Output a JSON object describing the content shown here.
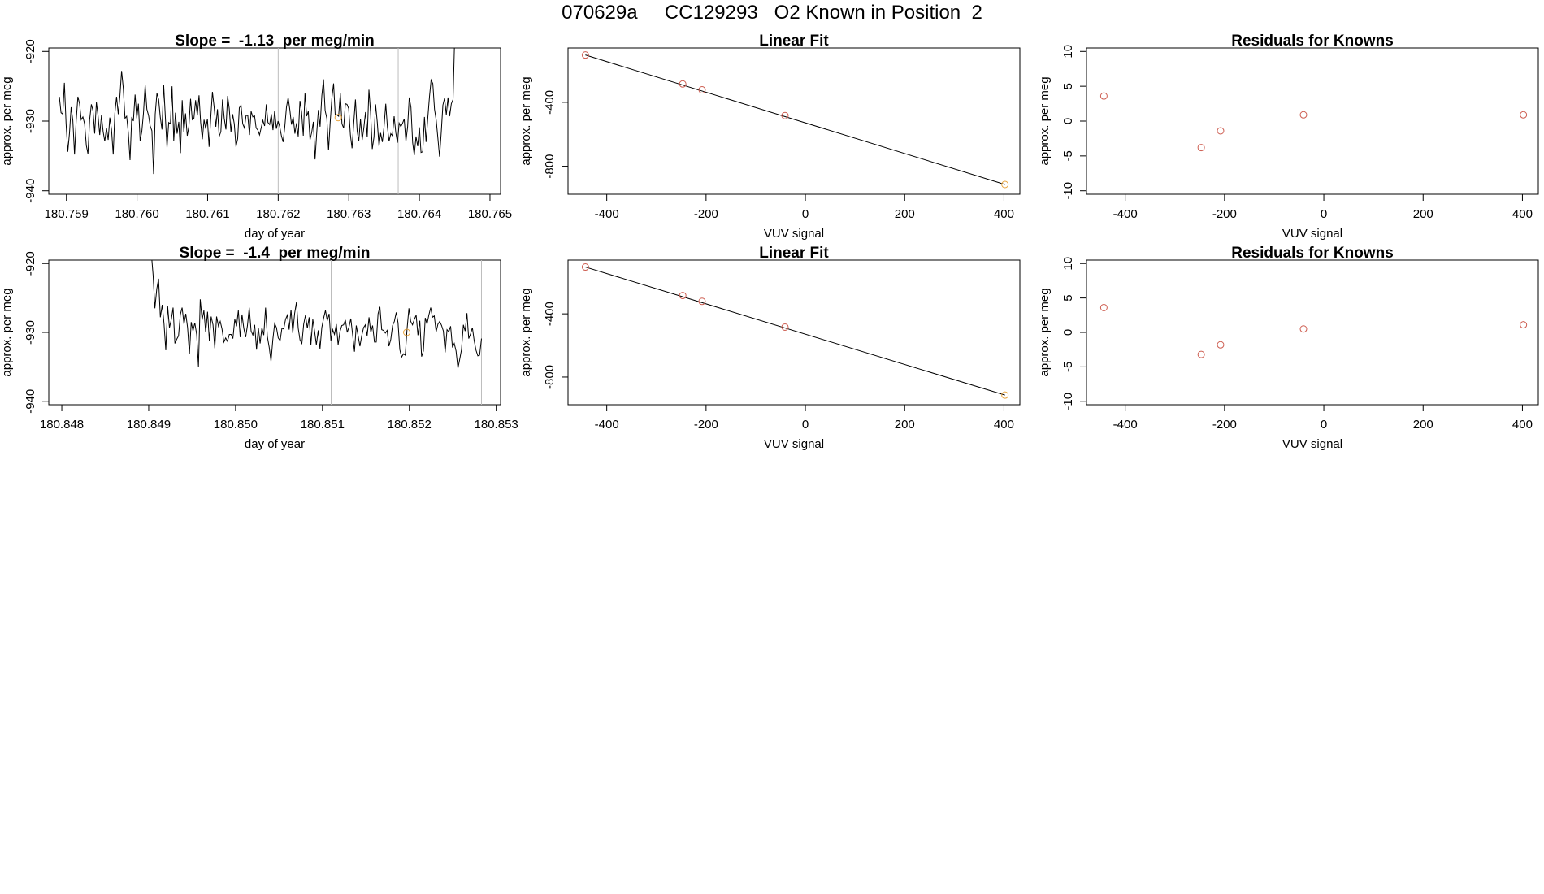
{
  "page": {
    "title": "070629a     CC129293   O2 Known in Position  2"
  },
  "colors": {
    "line": "#000000",
    "frame": "#000000",
    "vline": "#bdbdbd",
    "point_red": "#cd5c4f",
    "point_orange": "#e8a33c"
  },
  "chart_data": [
    {
      "id": "ts1",
      "type": "line",
      "title": "Slope =  -1.13  per meg/min",
      "xlabel": "day of year",
      "ylabel": "approx. per meg",
      "xlim": [
        180.75875,
        180.76515
      ],
      "ylim": [
        -940.5,
        -919.5
      ],
      "xticks": [
        "180.759",
        "180.760",
        "180.761",
        "180.762",
        "180.763",
        "180.764",
        "180.765"
      ],
      "yticks": [
        "-920",
        "-930",
        "-940"
      ],
      "x_start": 180.7589,
      "x_end": 180.7645,
      "y": [
        -926.5,
        -928.8,
        -929.0,
        -924.5,
        -930.4,
        -934.4,
        -931.7,
        -928.0,
        -929.9,
        -934.8,
        -930.0,
        -926.5,
        -927.5,
        -929.8,
        -929.4,
        -930.4,
        -933.5,
        -934.7,
        -929.8,
        -927.6,
        -928.5,
        -931.8,
        -927.3,
        -929.2,
        -932.0,
        -929.2,
        -931.5,
        -932.9,
        -931.0,
        -932.7,
        -929.5,
        -931.2,
        -934.8,
        -928.9,
        -926.5,
        -929.0,
        -926.3,
        -922.8,
        -925.3,
        -929.6,
        -929.3,
        -931.7,
        -935.6,
        -929.4,
        -930.0,
        -926.2,
        -929.6,
        -927.5,
        -932.8,
        -931.5,
        -928.9,
        -924.8,
        -928.3,
        -929.2,
        -930.7,
        -931.4,
        -937.6,
        -929.0,
        -926.0,
        -926.9,
        -929.4,
        -931.2,
        -924.8,
        -929.5,
        -933.8,
        -930.2,
        -930.4,
        -925.0,
        -932.8,
        -928.8,
        -931.8,
        -930.1,
        -934.6,
        -927.0,
        -931.6,
        -928.9,
        -932.1,
        -930.8,
        -926.8,
        -929.8,
        -929.6,
        -927.0,
        -929.2,
        -926.3,
        -930.2,
        -932.6,
        -929.8,
        -931.1,
        -929.7,
        -933.7,
        -929.4,
        -925.8,
        -928.0,
        -930.8,
        -928.3,
        -932.2,
        -931.5,
        -926.9,
        -929.6,
        -931.2,
        -926.4,
        -928.2,
        -931.6,
        -929.0,
        -930.4,
        -933.7,
        -932.5,
        -928.1,
        -927.7,
        -930.4,
        -931.0,
        -929.2,
        -929.2,
        -932.0,
        -928.6,
        -929.4,
        -929.2,
        -931.0,
        -931.3,
        -932.0,
        -930.9,
        -929.9,
        -930.7,
        -927.6,
        -930.2,
        -930.5,
        -929.0,
        -931.3,
        -928.5,
        -931.1,
        -930.0,
        -930.8,
        -932.1,
        -933.0,
        -930.9,
        -928.0,
        -926.6,
        -928.4,
        -930.5,
        -929.4,
        -931.8,
        -930.3,
        -932.2,
        -927.1,
        -928.7,
        -932.1,
        -926.0,
        -929.3,
        -928.6,
        -932.7,
        -931.6,
        -930.1,
        -935.5,
        -931.6,
        -928.4,
        -930.8,
        -926.4,
        -924.0,
        -928.5,
        -929.6,
        -934.2,
        -930.2,
        -926.7,
        -924.6,
        -929.1,
        -929.1,
        -929.3,
        -926.0,
        -930.4,
        -931.0,
        -927.5,
        -927.6,
        -928.2,
        -932.0,
        -933.9,
        -930.3,
        -926.9,
        -931.4,
        -932.9,
        -929.7,
        -932.7,
        -931.0,
        -928.7,
        -932.3,
        -925.5,
        -928.7,
        -934.0,
        -932.3,
        -927.6,
        -930.2,
        -933.6,
        -931.7,
        -933.0,
        -930.8,
        -927.5,
        -930.8,
        -932.9,
        -931.8,
        -932.1,
        -929.3,
        -931.7,
        -933.1,
        -930.3,
        -930.8,
        -930.3,
        -929.7,
        -932.9,
        -930.8,
        -926.6,
        -928.0,
        -933.1,
        -934.9,
        -932.2,
        -933.6,
        -930.9,
        -934.5,
        -934.4,
        -929.4,
        -933.0,
        -929.6,
        -926.5,
        -924.1,
        -924.6,
        -928.3,
        -929.9,
        -932.4,
        -935.1,
        -931.6,
        -927.7,
        -926.7,
        -929.1,
        -926.6,
        -929.3,
        -927.5,
        -926.9,
        -918.0
      ],
      "vlines": [
        180.762,
        180.7637
      ],
      "marker": {
        "x": 180.76285,
        "y": -929.5
      }
    },
    {
      "id": "fit1",
      "type": "scatter",
      "title": "Linear Fit",
      "xlabel": "VUV signal",
      "ylabel": "approx. per meg",
      "xlim": [
        -478,
        432
      ],
      "ylim": [
        -975,
        -60
      ],
      "xticks": [
        "-400",
        "-200",
        "0",
        "200",
        "400"
      ],
      "yticks": [
        "-400",
        "-800"
      ],
      "points": [
        {
          "x": -443,
          "y": -104
        },
        {
          "x": -247,
          "y": -285
        },
        {
          "x": -208,
          "y": -322
        },
        {
          "x": -41,
          "y": -483
        },
        {
          "x": 402,
          "y": -914
        }
      ],
      "fit_line": [
        {
          "x": -443,
          "y": -104
        },
        {
          "x": 402,
          "y": -914
        }
      ],
      "highlight_index": 4
    },
    {
      "id": "res1",
      "type": "scatter",
      "title": "Residuals for Knowns",
      "xlabel": "VUV signal",
      "ylabel": "approx. per meg",
      "xlim": [
        -478,
        432
      ],
      "ylim": [
        -10.5,
        10.5
      ],
      "xticks": [
        "-400",
        "-200",
        "0",
        "200",
        "400"
      ],
      "yticks": [
        "10",
        "5",
        "0",
        "-5",
        "-10"
      ],
      "points": [
        {
          "x": -443,
          "y": 3.6
        },
        {
          "x": -247,
          "y": -3.8
        },
        {
          "x": -208,
          "y": -1.4
        },
        {
          "x": -41,
          "y": 0.9
        },
        {
          "x": 402,
          "y": 0.9
        }
      ]
    },
    {
      "id": "ts2",
      "type": "line",
      "title": "Slope =  -1.4  per meg/min",
      "xlabel": "day of year",
      "ylabel": "approx. per meg",
      "xlim": [
        180.84785,
        180.85305
      ],
      "ylim": [
        -940.5,
        -919.5
      ],
      "xticks": [
        "180.848",
        "180.849",
        "180.850",
        "180.851",
        "180.852",
        "180.853"
      ],
      "yticks": [
        "-920",
        "-930",
        "-940"
      ],
      "x_start": 180.84903,
      "x_end": 180.85283,
      "y": [
        -918.5,
        -921.7,
        -926.5,
        -923.7,
        -922.2,
        -927.8,
        -926.0,
        -928.7,
        -932.6,
        -926.2,
        -929.3,
        -928.2,
        -926.4,
        -931.6,
        -931.0,
        -930.5,
        -927.4,
        -926.4,
        -928.8,
        -927.3,
        -929.3,
        -933.1,
        -928.5,
        -929.8,
        -928.6,
        -930.3,
        -935.0,
        -925.2,
        -928.2,
        -926.8,
        -930.0,
        -927.0,
        -931.2,
        -927.7,
        -928.9,
        -932.3,
        -927.7,
        -929.1,
        -928.4,
        -929.5,
        -931.4,
        -930.8,
        -931.3,
        -930.3,
        -930.3,
        -930.9,
        -928.1,
        -929.1,
        -926.8,
        -930.7,
        -927.4,
        -929.4,
        -930.7,
        -929.0,
        -926.4,
        -929.8,
        -930.4,
        -928.9,
        -932.5,
        -929.3,
        -931.6,
        -929.3,
        -930.4,
        -926.4,
        -930.6,
        -932.2,
        -934.2,
        -931.1,
        -928.7,
        -929.3,
        -930.8,
        -931.2,
        -929.4,
        -929.5,
        -928.1,
        -927.5,
        -929.6,
        -926.7,
        -930.1,
        -927.3,
        -925.6,
        -929.4,
        -931.1,
        -931.6,
        -928.8,
        -927.5,
        -929.4,
        -927.8,
        -931.8,
        -928.1,
        -929.8,
        -931.8,
        -929.7,
        -932.4,
        -929.3,
        -927.9,
        -926.8,
        -928.3,
        -927.3,
        -931.2,
        -929.6,
        -930.3,
        -928.8,
        -931.8,
        -929.9,
        -929.0,
        -928.9,
        -928.2,
        -930.0,
        -929.2,
        -928.0,
        -930.4,
        -932.8,
        -929.0,
        -930.5,
        -932.0,
        -930.5,
        -929.3,
        -928.9,
        -930.5,
        -927.8,
        -930.0,
        -929.0,
        -931.4,
        -931.4,
        -927.3,
        -926.3,
        -929.6,
        -929.7,
        -930.1,
        -929.7,
        -932.0,
        -931.0,
        -929.0,
        -928.4,
        -927.1,
        -928.6,
        -932.5,
        -933.6,
        -933.1,
        -933.3,
        -929.5,
        -926.5,
        -928.4,
        -928.9,
        -928.1,
        -927.5,
        -930.4,
        -928.3,
        -933.5,
        -932.7,
        -927.9,
        -928.8,
        -927.5,
        -926.4,
        -927.8,
        -927.6,
        -929.9,
        -928.8,
        -928.4,
        -929.0,
        -929.8,
        -932.9,
        -929.6,
        -929.9,
        -929.1,
        -932.2,
        -931.6,
        -932.7,
        -935.2,
        -933.9,
        -932.5,
        -928.9,
        -929.8,
        -927.2,
        -930.9,
        -930.2,
        -929.3,
        -931.2,
        -932.6,
        -933.4,
        -933.3,
        -930.9
      ],
      "vlines": [
        180.8511,
        180.85283
      ],
      "marker": {
        "x": 180.85197,
        "y": -930.0
      }
    },
    {
      "id": "fit2",
      "type": "scatter",
      "title": "Linear Fit",
      "xlabel": "VUV signal",
      "ylabel": "approx. per meg",
      "xlim": [
        -478,
        432
      ],
      "ylim": [
        -975,
        -60
      ],
      "xticks": [
        "-400",
        "-200",
        "0",
        "200",
        "400"
      ],
      "yticks": [
        "-400",
        "-800"
      ],
      "points": [
        {
          "x": -443,
          "y": -104
        },
        {
          "x": -247,
          "y": -284
        },
        {
          "x": -208,
          "y": -321
        },
        {
          "x": -41,
          "y": -484
        },
        {
          "x": 402,
          "y": -914
        }
      ],
      "fit_line": [
        {
          "x": -443,
          "y": -104
        },
        {
          "x": 402,
          "y": -914
        }
      ],
      "highlight_index": 4
    },
    {
      "id": "res2",
      "type": "scatter",
      "title": "Residuals for Knowns",
      "xlabel": "VUV signal",
      "ylabel": "approx. per meg",
      "xlim": [
        -478,
        432
      ],
      "ylim": [
        -10.5,
        10.5
      ],
      "xticks": [
        "-400",
        "-200",
        "0",
        "200",
        "400"
      ],
      "yticks": [
        "10",
        "5",
        "0",
        "-5",
        "-10"
      ],
      "points": [
        {
          "x": -443,
          "y": 3.6
        },
        {
          "x": -247,
          "y": -3.2
        },
        {
          "x": -208,
          "y": -1.8
        },
        {
          "x": -41,
          "y": 0.5
        },
        {
          "x": 402,
          "y": 1.1
        }
      ]
    }
  ]
}
